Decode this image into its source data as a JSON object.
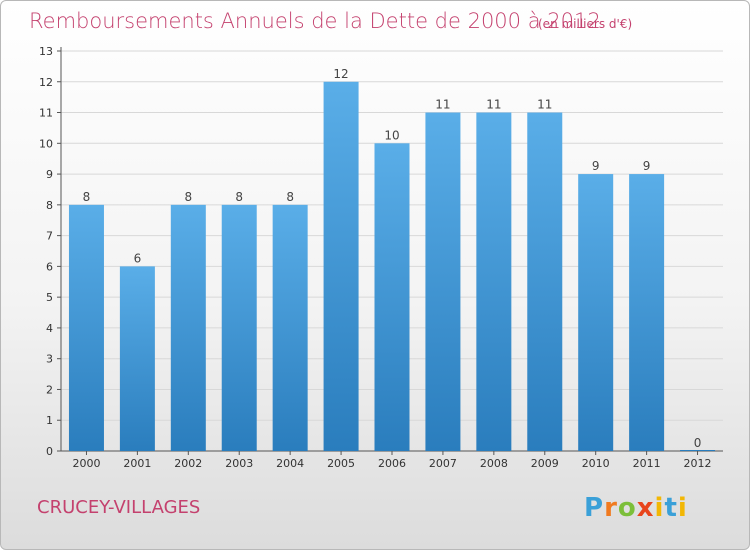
{
  "colors": {
    "title": "#c4416e",
    "bar_top": "#5aaee8",
    "bar_bottom": "#2a7dbd",
    "grid": "#d8d8d8"
  },
  "chart_data": {
    "type": "bar",
    "title": "Remboursements Annuels de la Dette de 2000 à 2012",
    "subtitle": "(en milliers d'€)",
    "xlabel": "",
    "ylabel": "",
    "categories": [
      "2000",
      "2001",
      "2002",
      "2003",
      "2004",
      "2005",
      "2006",
      "2007",
      "2008",
      "2009",
      "2010",
      "2011",
      "2012"
    ],
    "values": [
      8,
      6,
      8,
      8,
      8,
      12,
      10,
      11,
      11,
      11,
      9,
      9,
      0
    ],
    "ylim": [
      0,
      13
    ],
    "yticks": [
      0,
      1,
      2,
      3,
      4,
      5,
      6,
      7,
      8,
      9,
      10,
      11,
      12,
      13
    ],
    "grid": true,
    "legend": "none"
  },
  "footer": {
    "commune": "CRUCEY-VILLAGES",
    "logo": {
      "p": "P",
      "r": "r",
      "o": "o",
      "x": "x",
      "i": "i",
      "t": "t",
      "i2": "i"
    }
  }
}
